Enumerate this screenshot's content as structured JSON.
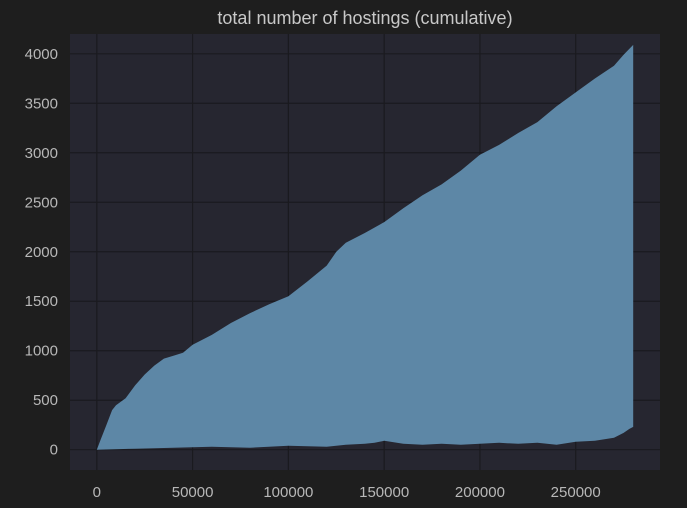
{
  "chart_data": {
    "type": "area",
    "title": "total number of hostings (cumulative)",
    "xlabel": "",
    "ylabel": "",
    "xlim": [
      -14000,
      294000
    ],
    "ylim": [
      -205,
      4200
    ],
    "x_ticks": [
      0,
      50000,
      100000,
      150000,
      200000,
      250000
    ],
    "x_tick_labels": [
      "0",
      "50000",
      "100000",
      "150000",
      "200000",
      "250000"
    ],
    "y_ticks": [
      0,
      500,
      1000,
      1500,
      2000,
      2500,
      3000,
      3500,
      4000
    ],
    "y_tick_labels": [
      "0",
      "500",
      "1000",
      "1500",
      "2000",
      "2500",
      "3000",
      "3500",
      "4000"
    ],
    "grid": true,
    "series": [
      {
        "color": "#5d87a6",
        "note_upper": "upper envelope of the filled area",
        "x": [
          0,
          2000,
          5000,
          8000,
          10000,
          15000,
          20000,
          25000,
          30000,
          35000,
          40000,
          45000,
          50000,
          60000,
          70000,
          80000,
          90000,
          100000,
          110000,
          120000,
          125000,
          130000,
          140000,
          150000,
          160000,
          170000,
          180000,
          190000,
          200000,
          210000,
          220000,
          230000,
          240000,
          250000,
          260000,
          270000,
          275000,
          280000
        ],
        "y": [
          0,
          100,
          250,
          400,
          450,
          520,
          650,
          760,
          850,
          920,
          950,
          980,
          1060,
          1160,
          1280,
          1380,
          1470,
          1550,
          1700,
          1860,
          2000,
          2090,
          2190,
          2300,
          2440,
          2570,
          2680,
          2820,
          2980,
          3080,
          3200,
          3310,
          3470,
          3610,
          3750,
          3880,
          3990,
          4090
        ]
      }
    ],
    "lower_envelope": {
      "x": [
        0,
        20000,
        40000,
        60000,
        80000,
        100000,
        120000,
        130000,
        140000,
        145000,
        150000,
        160000,
        170000,
        180000,
        190000,
        200000,
        210000,
        220000,
        230000,
        240000,
        250000,
        260000,
        270000,
        275000,
        278000,
        280000
      ],
      "y": [
        0,
        10,
        20,
        30,
        20,
        40,
        30,
        50,
        60,
        70,
        90,
        60,
        50,
        60,
        50,
        60,
        70,
        60,
        70,
        50,
        80,
        90,
        120,
        170,
        210,
        230
      ]
    }
  }
}
